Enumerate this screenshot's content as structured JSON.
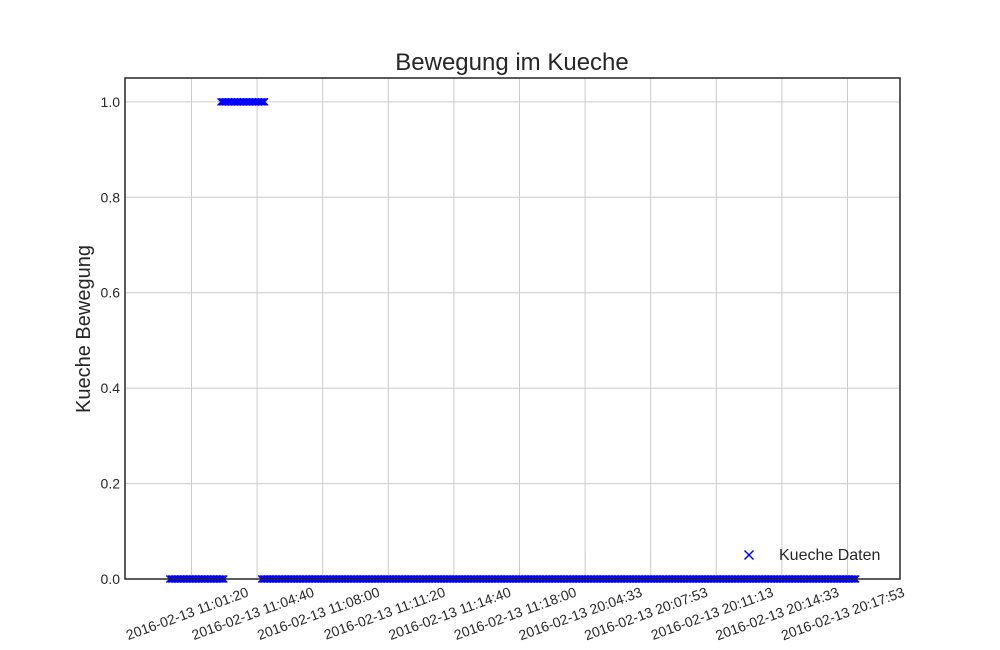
{
  "chart_data": {
    "type": "scatter",
    "title": "Bewegung im Kueche",
    "xlabel": "",
    "ylabel": "Kueche Bewegung",
    "ylim": [
      0,
      1.05
    ],
    "yticks": [
      0.0,
      0.2,
      0.4,
      0.6,
      0.8,
      1.0
    ],
    "ytick_labels": [
      "0.0",
      "0.2",
      "0.4",
      "0.6",
      "0.8",
      "1.0"
    ],
    "x_categories": [
      "2016-02-13 11:01:20",
      "2016-02-13 11:04:40",
      "2016-02-13 11:08:00",
      "2016-02-13 11:11:20",
      "2016-02-13 11:14:40",
      "2016-02-13 11:18:00",
      "2016-02-13 20:04:33",
      "2016-02-13 20:07:53",
      "2016-02-13 20:11:13",
      "2016-02-13 20:14:33",
      "2016-02-13 20:17:53"
    ],
    "grid": true,
    "legend_position": "bottom-right",
    "marker": "x",
    "color": "#0000ff",
    "series": [
      {
        "name": "Kueche Daten",
        "segments": [
          {
            "from": "2016-02-13 11:00:14",
            "to": "2016-02-13 11:03:01",
            "value": 0
          },
          {
            "from": "2016-02-13 11:02:50",
            "to": "2016-02-13 11:05:04",
            "value": 1
          },
          {
            "from": "2016-02-13 11:04:54",
            "to": "2016-02-13 20:18:19",
            "value": 0
          }
        ]
      }
    ]
  }
}
